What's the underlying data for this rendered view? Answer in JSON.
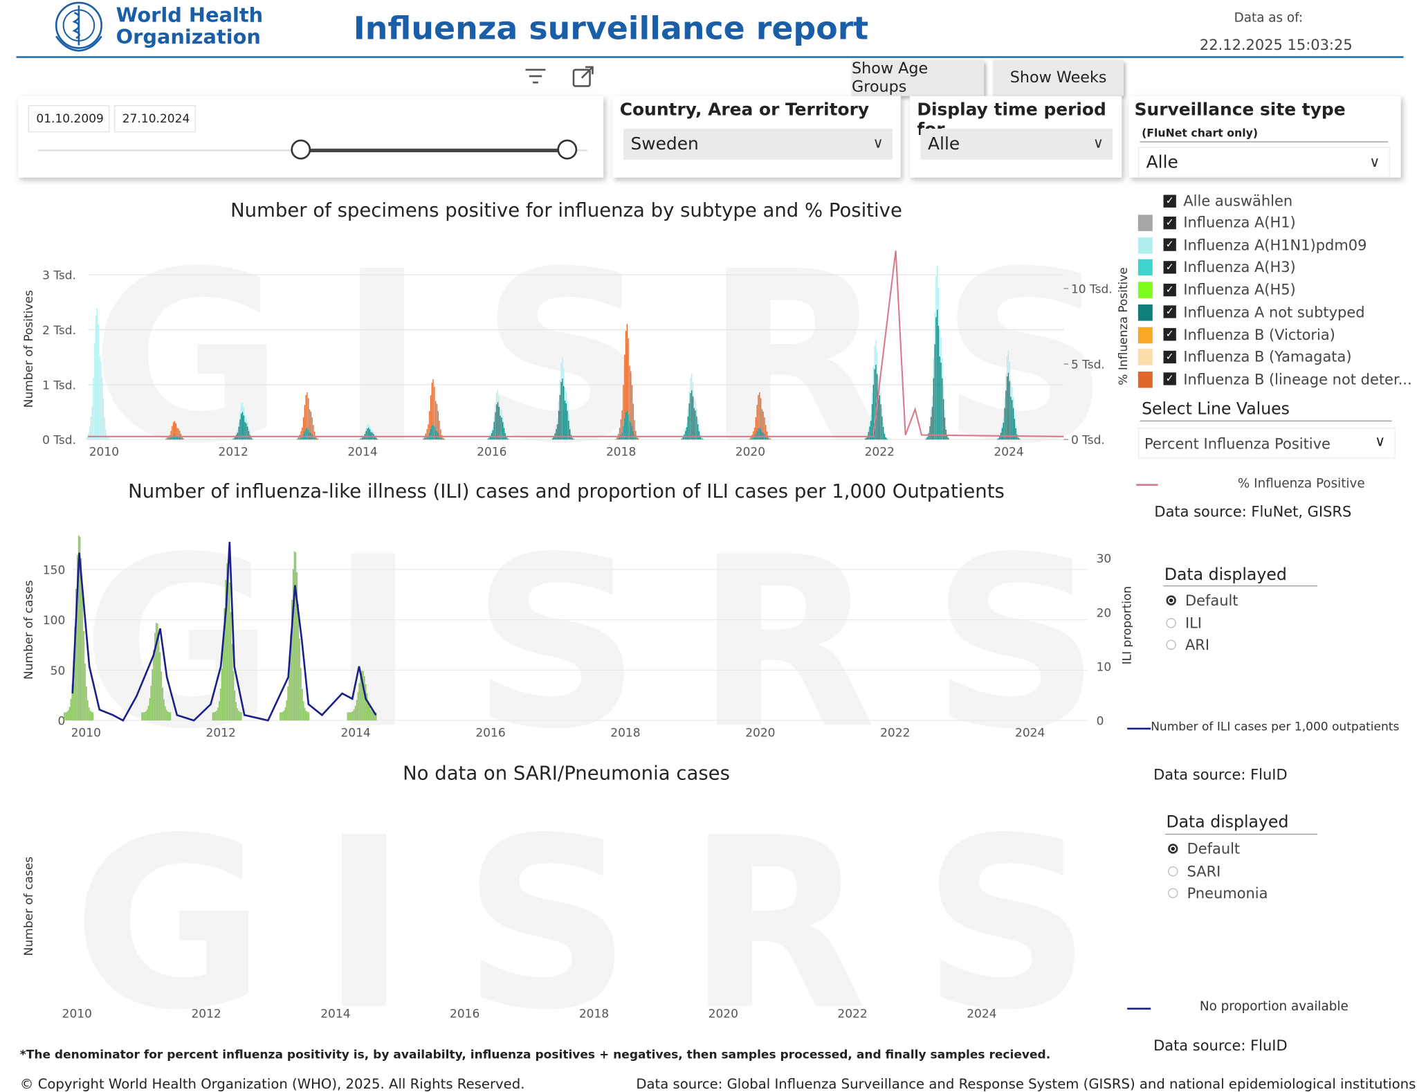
{
  "header": {
    "org_line1": "World Health",
    "org_line2": "Organization",
    "title": "Influenza surveillance report",
    "data_as_of_label": "Data as of:",
    "data_as_of_value": "22.12.2025 15:03:25"
  },
  "toolbar": {
    "show_age_groups": "Show Age Groups",
    "show_weeks": "Show Weeks"
  },
  "date_slicer": {
    "start": "01.10.2009",
    "end": "27.10.2024"
  },
  "country_slicer": {
    "title": "Country, Area or Territory",
    "value": "Sweden"
  },
  "period_slicer": {
    "title": "Display time period for",
    "value": "Alle"
  },
  "site_slicer": {
    "title": "Surveillance site type",
    "subtitle": "(FluNet chart only)",
    "value": "Alle"
  },
  "watermark": "GISRS",
  "subtype_legend": {
    "select_all": "Alle auswählen",
    "items": [
      {
        "label": "Influenza A(H1)",
        "color": "#a6a6a6"
      },
      {
        "label": "Influenza A(H1N1)pdm09",
        "color": "#b0eef0"
      },
      {
        "label": "Influenza A(H3)",
        "color": "#3fd3d0"
      },
      {
        "label": "Influenza A(H5)",
        "color": "#7cfc1c"
      },
      {
        "label": "Influenza A not subtyped",
        "color": "#0e807a"
      },
      {
        "label": "Influenza B (Victoria)",
        "color": "#f9a825"
      },
      {
        "label": "Influenza B (Yamagata)",
        "color": "#fddcaa"
      },
      {
        "label": "Influenza B (lineage not deter...",
        "color": "#e0672a"
      }
    ],
    "line_values_title": "Select Line Values",
    "line_values_value": "Percent Influenza Positive",
    "line_legend": "% Influenza Positive",
    "line_color": "#d9798a",
    "source": "Data source: FluNet, GISRS"
  },
  "ili_legend": {
    "title": "Data displayed",
    "options": [
      "Default",
      "ILI",
      "ARI"
    ],
    "selected": "Default",
    "line_legend": "Number of ILI cases per 1,000 outpatients",
    "line_color": "#1a1f8a",
    "bar_color": "#8fc767",
    "source": "Data source: FluID"
  },
  "sari_legend": {
    "title": "Data displayed",
    "options": [
      "Default",
      "SARI",
      "Pneumonia"
    ],
    "selected": "Default",
    "line_legend": "No proportion available",
    "source": "Data source: FluID"
  },
  "footer": {
    "note": "*The denominator for percent influenza positivity is, by availabilty, influenza positives + negatives, then samples processed, and finally samples recieved.",
    "copyright": "© Copyright World Health Organization (WHO), 2025. All Rights Reserved.",
    "source": "Data source: Global Influenza Surveillance and Response System (GISRS) and national epidemiological institutions"
  },
  "chart_data": [
    {
      "type": "bar",
      "title": "Number of specimens positive for influenza by subtype and % Positive",
      "ylabel": "Number of Positives",
      "y2label": "% Influenza Positive",
      "x_ticks": [
        "2010",
        "2012",
        "2014",
        "2016",
        "2018",
        "2020",
        "2022",
        "2024"
      ],
      "y_ticks": [
        "0 Tsd.",
        "1 Tsd.",
        "2 Tsd.",
        "3 Tsd."
      ],
      "y2_ticks": [
        "0 Tsd.",
        "5 Tsd.",
        "10 Tsd."
      ],
      "xlim": [
        2009.75,
        2024.85
      ],
      "ylim": [
        0,
        3300
      ],
      "y2lim": [
        0,
        12000
      ],
      "season_peaks": [
        {
          "x": 2009.9,
          "value": 2500,
          "subtype": "Influenza A(H1N1)pdm09"
        },
        {
          "x": 2011.1,
          "value": 350,
          "subtype": "Influenza B (lineage not deter..."
        },
        {
          "x": 2012.15,
          "value": 700,
          "subtype": "Influenza A not subtyped"
        },
        {
          "x": 2013.15,
          "value": 900,
          "subtype": "Influenza B (lineage not deter..."
        },
        {
          "x": 2014.1,
          "value": 300,
          "subtype": "Influenza A not subtyped"
        },
        {
          "x": 2015.1,
          "value": 1150,
          "subtype": "Influenza B (lineage not deter..."
        },
        {
          "x": 2016.1,
          "value": 950,
          "subtype": "Influenza A not subtyped"
        },
        {
          "x": 2017.1,
          "value": 1550,
          "subtype": "Influenza A not subtyped"
        },
        {
          "x": 2018.1,
          "value": 2200,
          "subtype": "Influenza B (lineage not deter..."
        },
        {
          "x": 2019.1,
          "value": 1250,
          "subtype": "Influenza A not subtyped"
        },
        {
          "x": 2020.15,
          "value": 900,
          "subtype": "Influenza B (lineage not deter..."
        },
        {
          "x": 2021.95,
          "value": 1900,
          "subtype": "Influenza A not subtyped"
        },
        {
          "x": 2022.9,
          "value": 3300,
          "subtype": "Influenza A not subtyped"
        },
        {
          "x": 2024.0,
          "value": 1700,
          "subtype": "Influenza A not subtyped"
        }
      ],
      "line": {
        "name": "% Influenza Positive",
        "points": [
          [
            2009.75,
            200
          ],
          [
            2021.9,
            200
          ],
          [
            2022.25,
            12500
          ],
          [
            2022.4,
            300
          ],
          [
            2022.55,
            2000
          ],
          [
            2022.65,
            300
          ],
          [
            2024.85,
            200
          ]
        ]
      }
    },
    {
      "type": "bar",
      "title": "Number of influenza-like illness (ILI) cases and proportion of ILI cases per 1,000 Outpatients",
      "ylabel": "Number of cases",
      "y2label": "ILI proportion",
      "x_ticks": [
        "2010",
        "2012",
        "2014",
        "2016",
        "2018",
        "2020",
        "2022",
        "2024"
      ],
      "y_ticks": [
        "0",
        "50",
        "100",
        "150"
      ],
      "y2_ticks": [
        "0",
        "10",
        "20",
        "30"
      ],
      "xlim": [
        2009.8,
        2024.85
      ],
      "ylim": [
        0,
        180
      ],
      "y2lim": [
        0,
        33.5
      ],
      "bar_peaks": [
        {
          "x": 2009.9,
          "value": 178
        },
        {
          "x": 2011.05,
          "value": 90
        },
        {
          "x": 2012.1,
          "value": 150
        },
        {
          "x": 2013.1,
          "value": 162
        },
        {
          "x": 2014.1,
          "value": 42
        }
      ],
      "line": {
        "name": "Number of ILI cases per 1,000 outpatients",
        "points": [
          [
            2009.8,
            5
          ],
          [
            2009.9,
            31
          ],
          [
            2010.05,
            10
          ],
          [
            2010.2,
            2
          ],
          [
            2010.4,
            1
          ],
          [
            2010.55,
            0
          ],
          [
            2010.75,
            4.5
          ],
          [
            2011.0,
            12
          ],
          [
            2011.1,
            17
          ],
          [
            2011.2,
            8
          ],
          [
            2011.35,
            1
          ],
          [
            2011.6,
            0
          ],
          [
            2011.85,
            3
          ],
          [
            2012.0,
            10
          ],
          [
            2012.08,
            21
          ],
          [
            2012.13,
            33
          ],
          [
            2012.2,
            10
          ],
          [
            2012.35,
            1
          ],
          [
            2012.7,
            0
          ],
          [
            2013.0,
            8
          ],
          [
            2013.1,
            25
          ],
          [
            2013.2,
            15
          ],
          [
            2013.3,
            3
          ],
          [
            2013.5,
            1
          ],
          [
            2013.8,
            5
          ],
          [
            2013.95,
            4
          ],
          [
            2014.05,
            10
          ],
          [
            2014.15,
            4
          ],
          [
            2014.3,
            1
          ]
        ]
      }
    },
    {
      "type": "bar",
      "title": "No data on SARI/Pneumonia cases",
      "ylabel": "Number of cases",
      "x_ticks": [
        "2010",
        "2012",
        "2014",
        "2016",
        "2018",
        "2020",
        "2022",
        "2024"
      ]
    }
  ]
}
